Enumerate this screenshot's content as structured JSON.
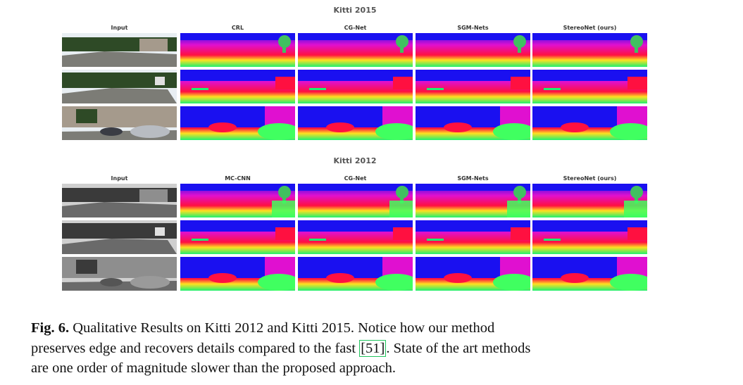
{
  "sections": [
    {
      "title": "Kitti 2015",
      "columns": [
        "Input",
        "CRL",
        "CG-Net",
        "SGM-Nets",
        "StereoNet (ours)"
      ],
      "rows": 3
    },
    {
      "title": "Kitti 2012",
      "columns": [
        "Input",
        "MC-CNN",
        "CG-Net",
        "SGM-Nets",
        "StereoNet (ours)"
      ],
      "rows": 3
    }
  ],
  "caption": {
    "label": "Fig. 6.",
    "line1": "Qualitative Results on Kitti 2012 and Kitti 2015. Notice how our method",
    "line2_pre": "preserves edge and recovers details compared to the fast ",
    "citation": "[51]",
    "line2_post": ". State of the art methods",
    "line3": "are one order of magnitude slower than the proposed approach."
  },
  "colors": {
    "disparity_far": "#1a10f0",
    "disparity_mid": "#e010d0",
    "disparity_near": "#ff1040",
    "ground_yellow": "#ffe020",
    "ground_green": "#20f070",
    "car_green": "#40ff60",
    "tree_green": "#40c060"
  }
}
